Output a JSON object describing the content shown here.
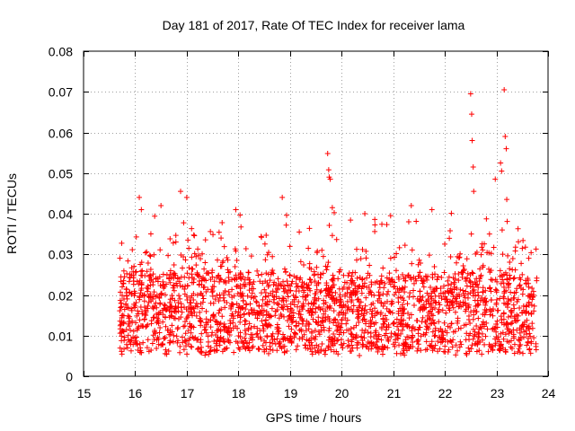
{
  "chart_data": {
    "type": "scatter",
    "title": "Day 181 of 2017, Rate Of TEC Index for receiver lama",
    "xlabel": "GPS time / hours",
    "ylabel": "ROTI / TECUs",
    "xlim": [
      15,
      24
    ],
    "ylim": [
      0,
      0.08
    ],
    "xticks": [
      15,
      16,
      17,
      18,
      19,
      20,
      21,
      22,
      23,
      24
    ],
    "yticks": [
      0,
      0.01,
      0.02,
      0.03,
      0.04,
      0.05,
      0.06,
      0.07,
      0.08
    ],
    "xtick_labels": [
      "15",
      "16",
      "17",
      "18",
      "19",
      "20",
      "21",
      "22",
      "23",
      "24"
    ],
    "ytick_labels": [
      "0",
      "0.01",
      "0.02",
      "0.03",
      "0.04",
      "0.05",
      "0.06",
      "0.07",
      "0.08"
    ],
    "grid": true,
    "marker": "+",
    "color": "#ff0000",
    "x_start": 15.7,
    "x_end": 23.8,
    "highlights": [
      {
        "x": 16.08,
        "y": 0.044
      },
      {
        "x": 16.12,
        "y": 0.041
      },
      {
        "x": 16.5,
        "y": 0.042
      },
      {
        "x": 16.88,
        "y": 0.0455
      },
      {
        "x": 17.0,
        "y": 0.044
      },
      {
        "x": 17.95,
        "y": 0.041
      },
      {
        "x": 18.85,
        "y": 0.044
      },
      {
        "x": 19.73,
        "y": 0.0548
      },
      {
        "x": 19.75,
        "y": 0.0508
      },
      {
        "x": 19.76,
        "y": 0.049
      },
      {
        "x": 19.78,
        "y": 0.0485
      },
      {
        "x": 19.82,
        "y": 0.0415
      },
      {
        "x": 20.45,
        "y": 0.04
      },
      {
        "x": 20.95,
        "y": 0.0395
      },
      {
        "x": 21.35,
        "y": 0.042
      },
      {
        "x": 21.75,
        "y": 0.041
      },
      {
        "x": 22.5,
        "y": 0.0695
      },
      {
        "x": 22.52,
        "y": 0.0645
      },
      {
        "x": 22.53,
        "y": 0.058
      },
      {
        "x": 22.55,
        "y": 0.0515
      },
      {
        "x": 22.56,
        "y": 0.0455
      },
      {
        "x": 23.08,
        "y": 0.0525
      },
      {
        "x": 23.1,
        "y": 0.0505
      },
      {
        "x": 23.15,
        "y": 0.0705
      },
      {
        "x": 23.17,
        "y": 0.059
      },
      {
        "x": 23.19,
        "y": 0.056
      },
      {
        "x": 23.2,
        "y": 0.0435
      },
      {
        "x": 23.5,
        "y": 0.025
      }
    ]
  }
}
